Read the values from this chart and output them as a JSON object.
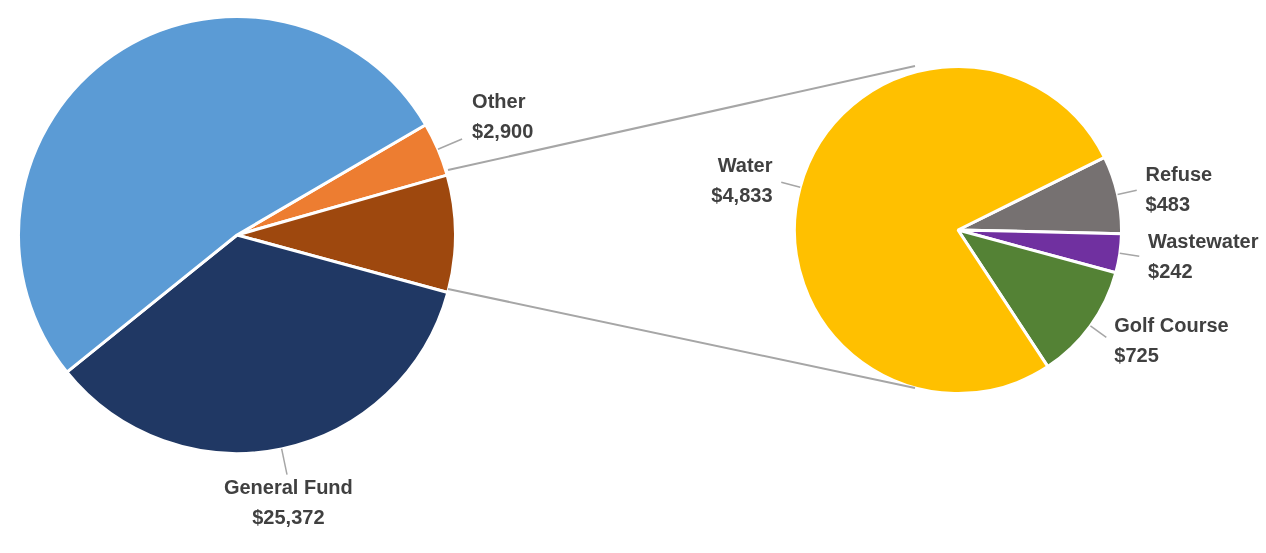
{
  "chart_data": [
    {
      "type": "pie",
      "categories": [
        "Other",
        null,
        "General Fund",
        null
      ],
      "values": [
        2900,
        6283,
        25372,
        38000
      ],
      "colors": [
        "#ed7d31",
        "#9e480e",
        "#203864",
        "#5b9bd5"
      ],
      "value_labels": [
        "$2,900",
        null,
        "$25,372",
        null
      ]
    },
    {
      "type": "pie",
      "categories": [
        "Refuse",
        "Wastewater",
        "Golf Course",
        "Water"
      ],
      "values": [
        483,
        242,
        725,
        4833
      ],
      "colors": [
        "#767171",
        "#7030a0",
        "#548235",
        "#ffc000"
      ],
      "value_labels": [
        "$483",
        "$242",
        "$725",
        "$4,833"
      ]
    }
  ]
}
